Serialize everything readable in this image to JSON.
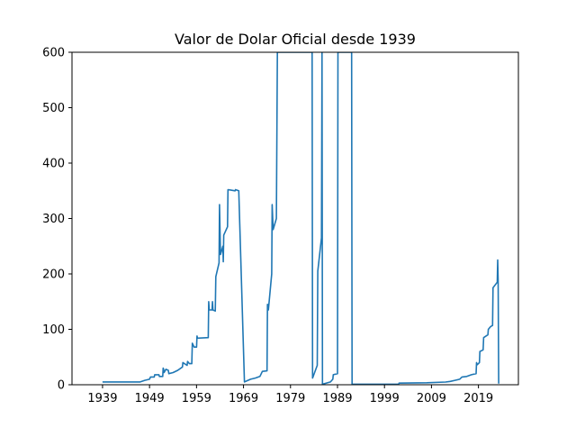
{
  "chart_data": {
    "type": "line",
    "title": "Valor de Dolar Oficial desde 1939",
    "xlabel": "",
    "ylabel": "",
    "xlim": [
      1932.5,
      2027.5
    ],
    "ylim": [
      0,
      600
    ],
    "xticks": [
      1939,
      1949,
      1959,
      1969,
      1979,
      1989,
      1999,
      2009,
      2019
    ],
    "yticks": [
      0,
      100,
      200,
      300,
      400,
      500,
      600
    ],
    "grid": false,
    "legend": "none",
    "series_color": "#1f77b4",
    "series": [
      {
        "points": [
          [
            1939,
            5
          ],
          [
            1947,
            5
          ],
          [
            1948,
            8
          ],
          [
            1949,
            10
          ],
          [
            1949.2,
            14
          ],
          [
            1950,
            14
          ],
          [
            1950.1,
            18
          ],
          [
            1951,
            18
          ],
          [
            1951.1,
            15
          ],
          [
            1951.8,
            15
          ],
          [
            1951.9,
            30
          ],
          [
            1952,
            28
          ],
          [
            1952.1,
            22
          ],
          [
            1952.5,
            28
          ],
          [
            1953,
            26
          ],
          [
            1953.1,
            20
          ],
          [
            1954,
            22
          ],
          [
            1955,
            26
          ],
          [
            1956,
            32
          ],
          [
            1956.1,
            40
          ],
          [
            1957,
            35
          ],
          [
            1957.1,
            42
          ],
          [
            1957.5,
            38
          ],
          [
            1958,
            38
          ],
          [
            1958.1,
            75
          ],
          [
            1958.5,
            68
          ],
          [
            1959,
            68
          ],
          [
            1959.1,
            88
          ],
          [
            1959.2,
            84
          ],
          [
            1961.5,
            85
          ],
          [
            1961.6,
            150
          ],
          [
            1961.7,
            135
          ],
          [
            1962.3,
            135
          ],
          [
            1962.4,
            150
          ],
          [
            1962.5,
            135
          ],
          [
            1963,
            133
          ],
          [
            1963.1,
            195
          ],
          [
            1963.8,
            220
          ],
          [
            1963.9,
            325
          ],
          [
            1964.1,
            235
          ],
          [
            1964.6,
            250
          ],
          [
            1964.7,
            222
          ],
          [
            1964.8,
            270
          ],
          [
            1965.6,
            285
          ],
          [
            1965.7,
            352
          ],
          [
            1967.2,
            350
          ],
          [
            1967.3,
            352
          ],
          [
            1968,
            350
          ],
          [
            1969.2,
            5
          ],
          [
            1970.5,
            10
          ],
          [
            1971.5,
            12
          ],
          [
            1972.5,
            15
          ],
          [
            1973,
            24
          ],
          [
            1974,
            25
          ],
          [
            1974.1,
            145
          ],
          [
            1974.3,
            135
          ],
          [
            1975,
            200
          ],
          [
            1975.1,
            325
          ],
          [
            1975.3,
            280
          ],
          [
            1976,
            300
          ],
          [
            1976.2,
            600
          ],
          [
            1983.6,
            600
          ],
          [
            1983.7,
            12
          ],
          [
            1984.7,
            35
          ],
          [
            1984.8,
            205
          ],
          [
            1985.6,
            265
          ],
          [
            1985.7,
            600
          ],
          [
            1985.8,
            1
          ],
          [
            1987.5,
            5
          ],
          [
            1988,
            10
          ],
          [
            1988.1,
            18
          ],
          [
            1989,
            20
          ],
          [
            1989.1,
            600
          ],
          [
            1992,
            600
          ],
          [
            1992.1,
            1
          ],
          [
            2002,
            1
          ],
          [
            2002.1,
            3
          ],
          [
            2008,
            3.5
          ],
          [
            2012,
            4.8
          ],
          [
            2013,
            6
          ],
          [
            2014,
            8
          ],
          [
            2015,
            10
          ],
          [
            2015.5,
            14
          ],
          [
            2016.5,
            15
          ],
          [
            2017.5,
            18
          ],
          [
            2018.5,
            20
          ],
          [
            2018.6,
            40
          ],
          [
            2018.7,
            36
          ],
          [
            2019.2,
            40
          ],
          [
            2019.3,
            60
          ],
          [
            2020,
            63
          ],
          [
            2020.1,
            85
          ],
          [
            2021,
            90
          ],
          [
            2021.1,
            100
          ],
          [
            2021.6,
            105
          ],
          [
            2022,
            107
          ],
          [
            2022.1,
            175
          ],
          [
            2023,
            185
          ],
          [
            2023.1,
            225
          ],
          [
            2023.2,
            188
          ],
          [
            2023.3,
            2
          ]
        ]
      }
    ]
  }
}
